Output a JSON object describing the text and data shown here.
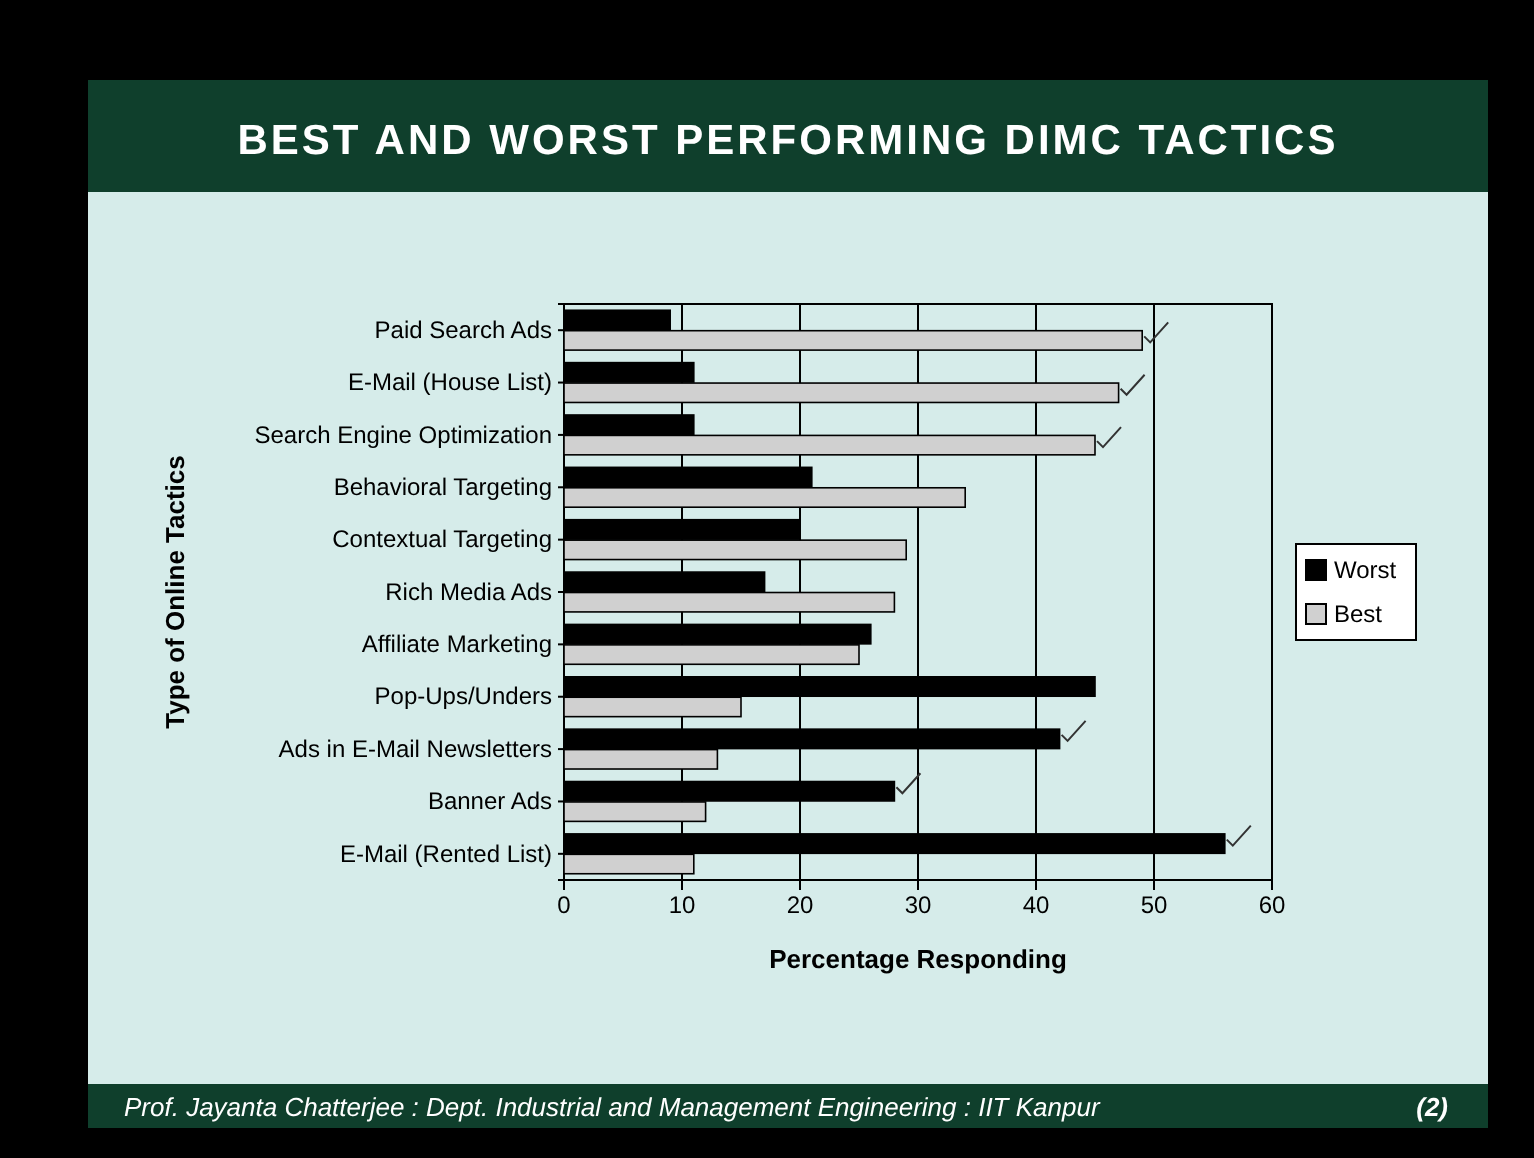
{
  "chart_data": {
    "type": "bar",
    "orientation": "horizontal",
    "title": "BEST AND WORST PERFORMING DIMC TACTICS",
    "xlabel": "Percentage Responding",
    "ylabel": "Type of Online Tactics",
    "categories": [
      "Paid Search Ads",
      "E-Mail (House List)",
      "Search Engine Optimization",
      "Behavioral Targeting",
      "Contextual Targeting",
      "Rich Media Ads",
      "Affiliate Marketing",
      "Pop-Ups/Unders",
      "Ads in E-Mail Newsletters",
      "Banner Ads",
      "E-Mail (Rented List)"
    ],
    "series": [
      {
        "name": "Worst",
        "color": "#000000",
        "values": [
          9,
          11,
          11,
          21,
          20,
          17,
          26,
          45,
          42,
          28,
          56
        ]
      },
      {
        "name": "Best",
        "color": "#d0d0d0",
        "values": [
          49,
          47,
          45,
          34,
          29,
          28,
          25,
          15,
          13,
          12,
          11
        ]
      }
    ],
    "xlim": [
      0,
      60
    ],
    "xticks": [
      0,
      10,
      20,
      30,
      40,
      50,
      60
    ],
    "grid": "x",
    "legend": "right",
    "annotations": [
      "Prof. Jayanta Chatterjee : Dept. Industrial and Management Engineering : IIT Kanpur",
      "(2)"
    ]
  }
}
